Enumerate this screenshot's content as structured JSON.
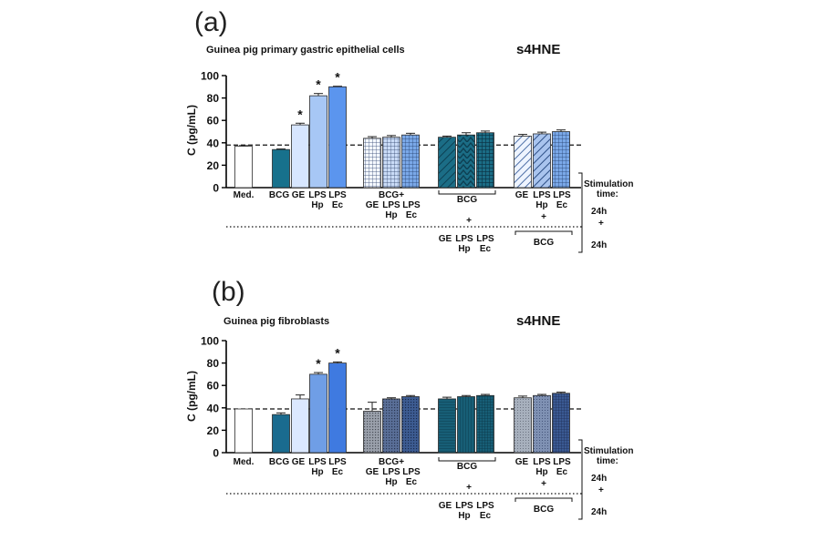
{
  "chart_data": [
    {
      "type": "bar",
      "panel_label": "(a)",
      "title": "Guinea pig primary gastric epithelial cells",
      "right_title": "s4HNE",
      "ylabel": "C (pg/mL)",
      "ylim": [
        0,
        100
      ],
      "yticks": [
        "0",
        "20",
        "40",
        "60",
        "80",
        "100"
      ],
      "reference_line": 38,
      "values": [
        37,
        34,
        56,
        82,
        90,
        44,
        45,
        47,
        45,
        47,
        49,
        46,
        48,
        50
      ],
      "errors": [
        0.5,
        0.5,
        1.5,
        2,
        0.5,
        1.5,
        1.5,
        1.5,
        1,
        2,
        1.5,
        1.5,
        1.5,
        1.5
      ],
      "significant": [
        false,
        false,
        true,
        true,
        true,
        false,
        false,
        false,
        false,
        false,
        false,
        false,
        false,
        false
      ],
      "significance_mark": "*"
    },
    {
      "type": "bar",
      "panel_label": "(b)",
      "title": "Guinea pig fibroblasts",
      "right_title": "s4HNE",
      "ylabel": "C (pg/mL)",
      "ylim": [
        0,
        100
      ],
      "yticks": [
        "0",
        "20",
        "40",
        "60",
        "80",
        "100"
      ],
      "reference_line": 39,
      "values": [
        39,
        34,
        48,
        70,
        80,
        37,
        48,
        50,
        48,
        50,
        51,
        49,
        51,
        53
      ],
      "errors": [
        0,
        1.5,
        3.5,
        1.5,
        1,
        8,
        1,
        1,
        1.5,
        1,
        1,
        1.5,
        1,
        1
      ],
      "significant": [
        false,
        false,
        false,
        true,
        true,
        false,
        false,
        false,
        false,
        false,
        false,
        false,
        false,
        false
      ],
      "significance_mark": "*"
    }
  ],
  "categories": {
    "med": "Med.",
    "bcg": "BCG",
    "ge": "GE",
    "lps": "LPS",
    "hp": "Hp",
    "ec": "Ec",
    "bcg_plus": "BCG+",
    "bracket_bcg": "BCG",
    "plus": "+",
    "stimulation": "Stimulation",
    "time": "time:",
    "t24": "24h"
  }
}
